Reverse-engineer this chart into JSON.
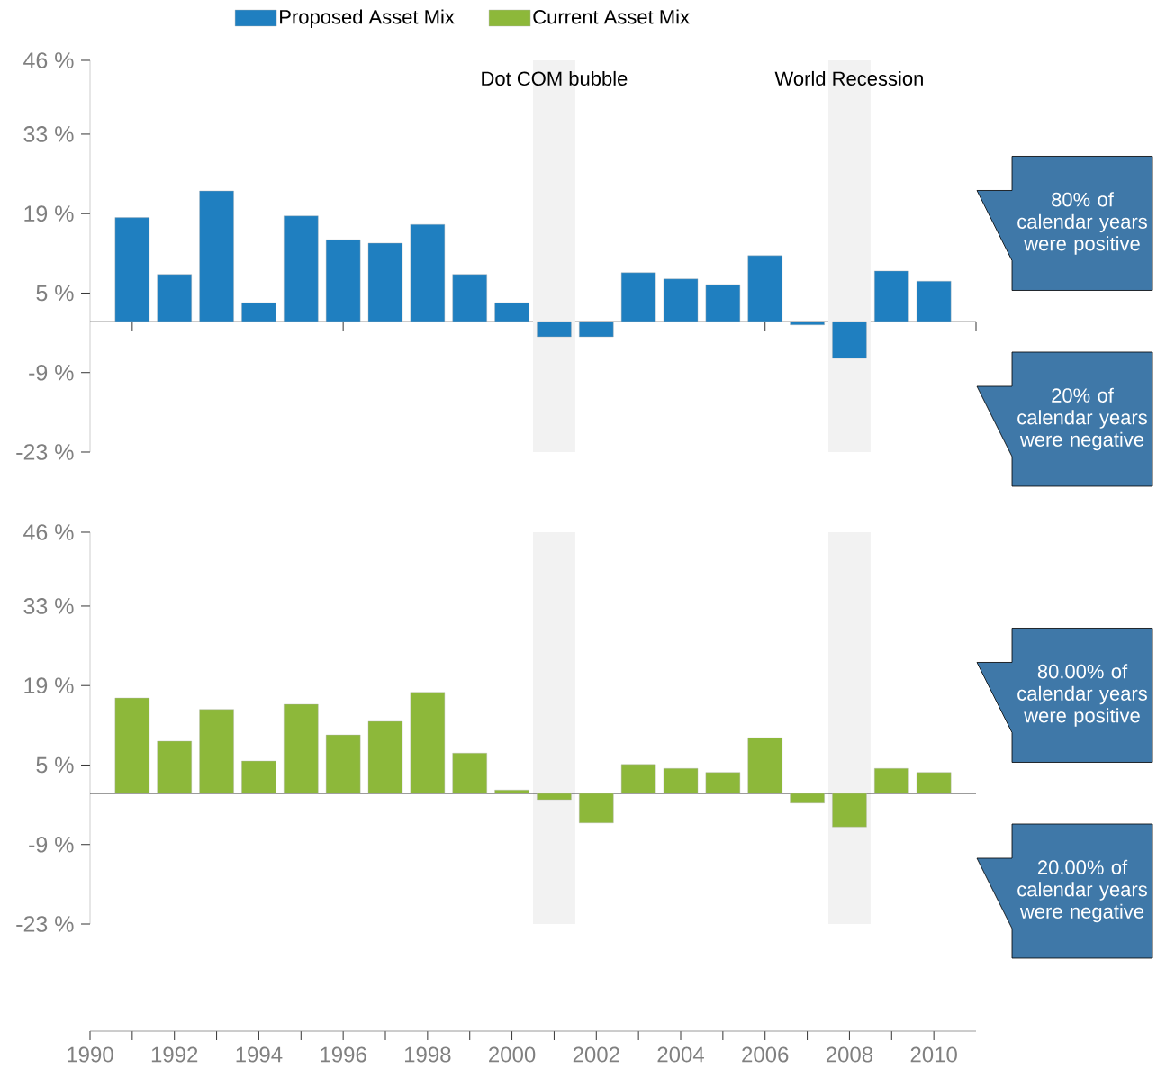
{
  "chart_data": [
    {
      "type": "bar",
      "x": [
        1991,
        1992,
        1993,
        1994,
        1995,
        1996,
        1997,
        1998,
        1999,
        2000,
        2001,
        2002,
        2003,
        2004,
        2005,
        2006,
        2007,
        2008,
        2009,
        2010
      ],
      "series": [
        {
          "name": "Proposed Asset Mix",
          "color": "#1f7fc0",
          "values": [
            18.3,
            8.3,
            23.0,
            3.3,
            18.6,
            14.4,
            13.8,
            17.1,
            8.3,
            3.3,
            -2.7,
            -2.7,
            8.6,
            7.5,
            6.5,
            11.6,
            -0.6,
            -6.5,
            8.9,
            7.1
          ]
        }
      ],
      "xlim": [
        1990,
        2011
      ],
      "xticks": [
        {
          "value": 1991,
          "label": null
        },
        {
          "value": 1996,
          "label": null
        },
        {
          "value": 2001,
          "label": null
        },
        {
          "value": 2006,
          "label": null
        },
        {
          "value": 2011,
          "label": null
        }
      ],
      "ylim": [
        -23,
        46
      ],
      "yticks": [
        {
          "value": -23,
          "label": "-23 %"
        },
        {
          "value": -9,
          "label": "-9 %"
        },
        {
          "value": 5,
          "label": "5 %"
        },
        {
          "value": 19,
          "label": "19 %"
        },
        {
          "value": 33,
          "label": "33 %"
        },
        {
          "value": 46,
          "label": "46 %"
        }
      ],
      "tick_labels": "y",
      "bands": [
        {
          "axis": "x",
          "from": 2000.5,
          "to": 2001.5,
          "label": "Dot COM bubble",
          "color": "#f2f2f2"
        },
        {
          "axis": "x",
          "from": 2007.5,
          "to": 2008.5,
          "label": "World Recession",
          "color": "#f2f2f2"
        }
      ],
      "annotations": [
        "80% of calendar years were positive",
        "20% of calendar years were negative"
      ],
      "legend": "top"
    },
    {
      "type": "bar",
      "x": [
        1991,
        1992,
        1993,
        1994,
        1995,
        1996,
        1997,
        1998,
        1999,
        2000,
        2001,
        2002,
        2003,
        2004,
        2005,
        2006,
        2007,
        2008,
        2009,
        2010
      ],
      "series": [
        {
          "name": "Current Asset Mix",
          "color": "#8db83a",
          "values": [
            16.8,
            9.2,
            14.8,
            5.7,
            15.7,
            10.3,
            12.7,
            17.8,
            7.1,
            0.6,
            -1.1,
            -5.2,
            5.1,
            4.4,
            3.7,
            9.8,
            -1.7,
            -5.9,
            4.4,
            3.7
          ]
        }
      ],
      "xlim": [
        1990,
        2011
      ],
      "xticks": [
        1990,
        1992,
        1994,
        1996,
        1998,
        2000,
        2002,
        2004,
        2006,
        2008,
        2010
      ],
      "ylim": [
        -23,
        46
      ],
      "yticks": [
        {
          "value": -23,
          "label": "-23 %"
        },
        {
          "value": -9,
          "label": "-9 %"
        },
        {
          "value": 5,
          "label": "5 %"
        },
        {
          "value": 19,
          "label": "19 %"
        },
        {
          "value": 33,
          "label": "33 %"
        },
        {
          "value": 46,
          "label": "46 %"
        }
      ],
      "bands": [
        {
          "axis": "x",
          "from": 2000.5,
          "to": 2001.5,
          "color": "#f2f2f2"
        },
        {
          "axis": "x",
          "from": 2007.5,
          "to": 2008.5,
          "color": "#f2f2f2"
        }
      ],
      "annotations": [
        "80.00% of calendar years were positive",
        "20.00% of calendar years were negative"
      ],
      "legend": "top"
    }
  ]
}
